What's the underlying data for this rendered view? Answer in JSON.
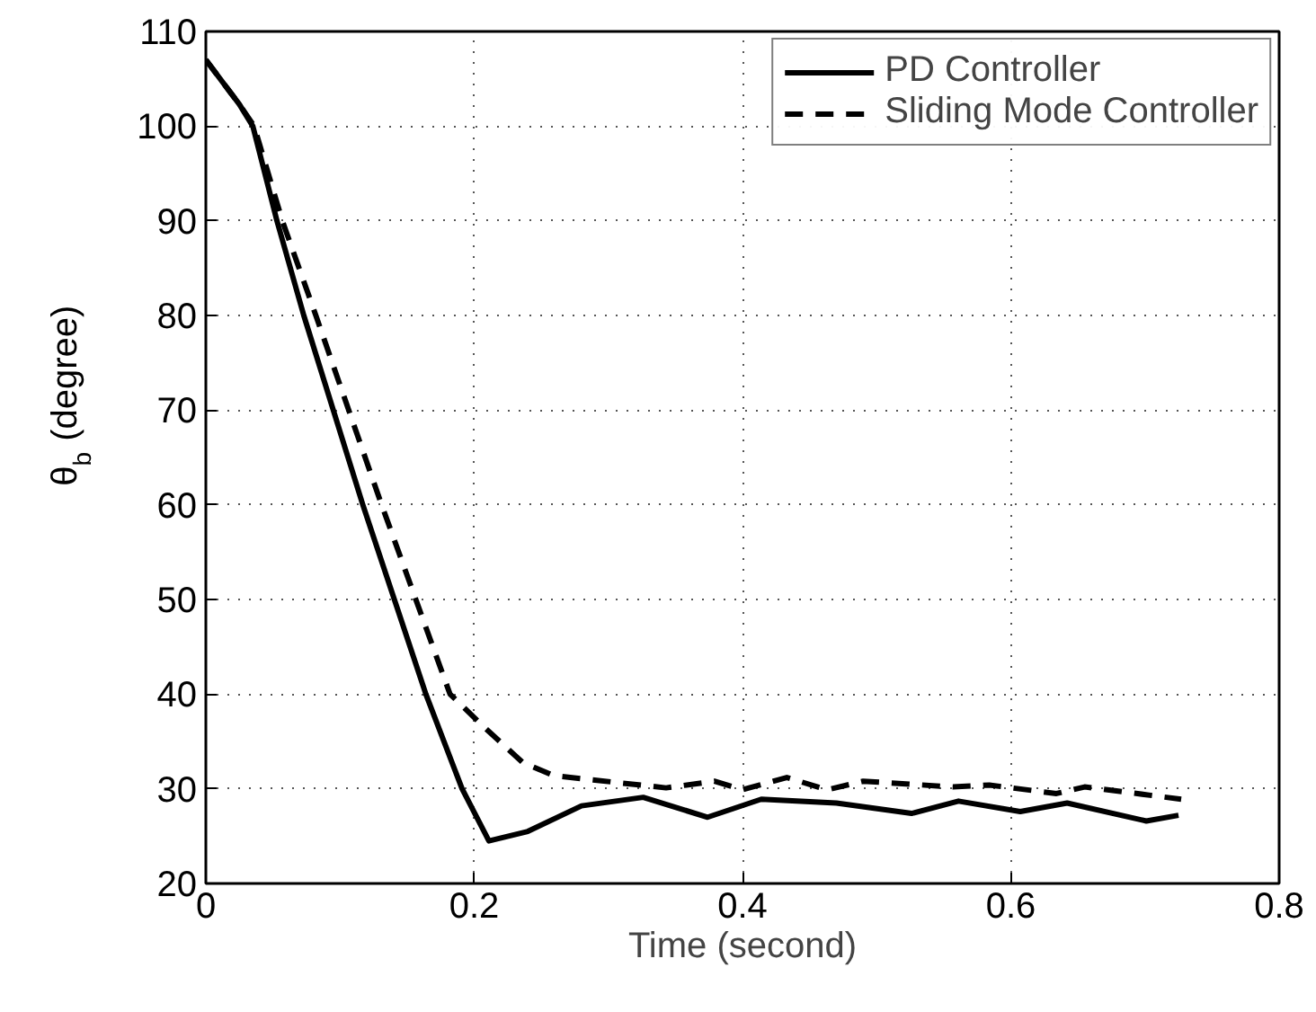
{
  "chart_data": {
    "type": "line",
    "xlabel": "Time (second)",
    "ylabel": "θ$_{b}$ (degree)",
    "xlim": [
      0,
      0.8
    ],
    "xticks": [
      0,
      0.2,
      0.4,
      0.6,
      0.8
    ],
    "ylim": [
      20,
      110
    ],
    "yticks": [
      20,
      30,
      40,
      50,
      60,
      70,
      80,
      90,
      100,
      110
    ],
    "grid": true,
    "legend": "top right",
    "series": [
      {
        "name": "PD Controller",
        "color": "#000000",
        "line_style": "solid",
        "x": [
          0,
          0.025,
          0.035,
          0.053,
          0.073,
          0.117,
          0.164,
          0.191,
          0.211,
          0.24,
          0.28,
          0.326,
          0.374,
          0.414,
          0.47,
          0.526,
          0.561,
          0.607,
          0.642,
          0.701,
          0.725
        ],
        "values": [
          107,
          102.3,
          100,
          90,
          80,
          60,
          40,
          30,
          24.5,
          25.5,
          28.2,
          29.1,
          27.0,
          28.9,
          28.5,
          27.4,
          28.7,
          27.6,
          28.5,
          26.6,
          27.2
        ]
      },
      {
        "name": "Sliding Mode Controller",
        "color": "#000000",
        "line_style": "dashed",
        "x": [
          0,
          0.025,
          0.036,
          0.057,
          0.082,
          0.131,
          0.182,
          0.209,
          0.236,
          0.259,
          0.343,
          0.379,
          0.4,
          0.433,
          0.463,
          0.49,
          0.557,
          0.584,
          0.634,
          0.655,
          0.727
        ],
        "values": [
          107,
          102.3,
          100,
          90,
          80,
          60,
          40,
          36.3,
          32.8,
          31.4,
          30.1,
          30.8,
          29.9,
          31.2,
          29.9,
          30.8,
          30.2,
          30.4,
          29.5,
          30.2,
          28.9
        ]
      }
    ]
  }
}
